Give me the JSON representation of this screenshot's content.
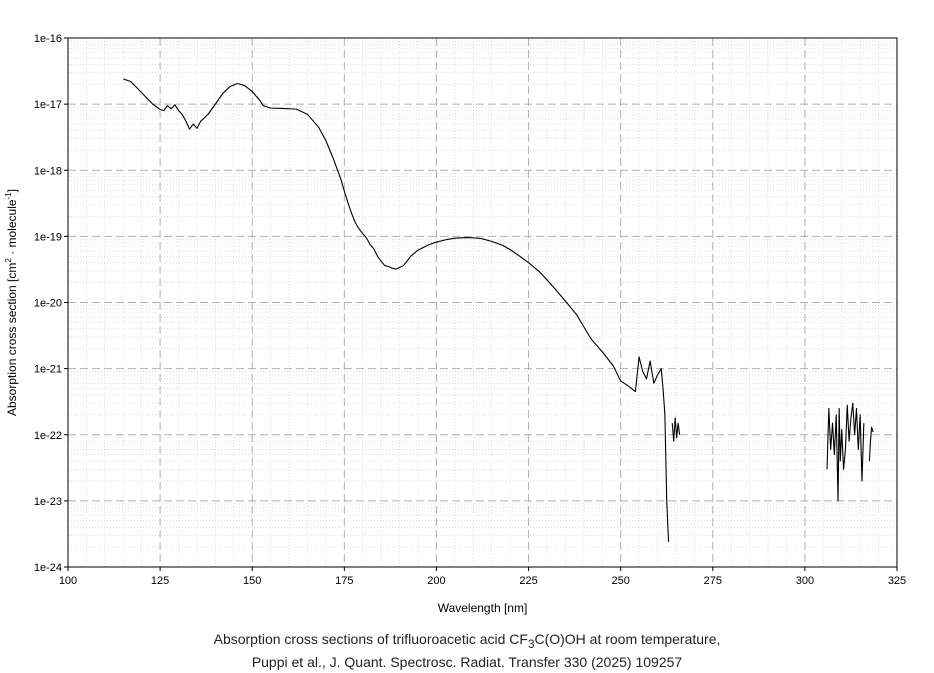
{
  "chart_data": {
    "type": "line",
    "title": "",
    "xlabel": "Wavelength [nm]",
    "ylabel_parts": [
      "Absorption cross section [cm",
      "2",
      " · molecule",
      "-1",
      "]"
    ],
    "xlim": [
      100,
      325
    ],
    "ylim_log10": [
      -24,
      -16
    ],
    "log_y": true,
    "grid": true,
    "line_color": "#000000",
    "x_ticks": [
      "100",
      "125",
      "150",
      "175",
      "200",
      "225",
      "250",
      "275",
      "300",
      "325"
    ],
    "y_ticks": [
      "1e-24",
      "1e-23",
      "1e-22",
      "1e-21",
      "1e-20",
      "1e-19",
      "1e-18",
      "1e-17",
      "1e-16"
    ],
    "series": [
      {
        "segment": "main",
        "x": [
          115,
          117,
          119,
          121,
          123,
          125,
          126,
          127,
          128,
          129,
          130,
          131,
          132,
          133,
          134,
          135,
          136,
          138,
          140,
          142,
          144,
          146,
          148,
          150,
          152,
          153,
          155,
          158,
          162,
          165,
          168,
          170,
          172,
          174,
          175,
          176,
          177,
          178,
          179,
          180,
          181,
          182,
          183,
          184,
          185,
          186,
          187,
          188,
          189,
          190,
          191,
          192,
          193,
          195,
          198,
          200,
          203,
          205,
          208,
          210,
          212,
          215,
          218,
          220,
          222,
          225,
          228,
          230,
          232,
          235,
          238,
          240,
          242,
          245,
          248,
          250,
          252,
          254,
          255,
          256,
          257,
          258,
          259,
          260,
          261,
          261.5,
          262,
          262.5,
          263
        ],
        "y": [
          2.4e-17,
          2.2e-17,
          1.7e-17,
          1.3e-17,
          1e-17,
          8.3e-18,
          8e-18,
          9.5e-18,
          8.5e-18,
          9.8e-18,
          8e-18,
          7e-18,
          5.5e-18,
          4.2e-18,
          5e-18,
          4.3e-18,
          5.5e-18,
          7e-18,
          1e-17,
          1.45e-17,
          1.85e-17,
          2.05e-17,
          1.9e-17,
          1.55e-17,
          1.15e-17,
          9.5e-18,
          8.7e-18,
          8.6e-18,
          8.4e-18,
          7e-18,
          4.5e-18,
          2.8e-18,
          1.5e-18,
          7.5e-19,
          4.8e-19,
          3.2e-19,
          2.2e-19,
          1.6e-19,
          1.3e-19,
          1.1e-19,
          9.5e-20,
          7.5e-20,
          6.5e-20,
          5e-20,
          4.2e-20,
          3.6e-20,
          3.5e-20,
          3.3e-20,
          3.2e-20,
          3.4e-20,
          3.6e-20,
          4.2e-20,
          5e-20,
          6.2e-20,
          7.5e-20,
          8.2e-20,
          9e-20,
          9.4e-20,
          9.6e-20,
          9.5e-20,
          9.3e-20,
          8.4e-20,
          7.3e-20,
          6.3e-20,
          5.3e-20,
          4e-20,
          2.9e-20,
          2.2e-20,
          1.65e-20,
          1.05e-20,
          6.6e-21,
          4.3e-21,
          2.8e-21,
          1.8e-21,
          1.1e-21,
          6.5e-22,
          5.5e-22,
          4.5e-22,
          1.5e-21,
          9e-22,
          7e-22,
          1.3e-21,
          6e-22,
          8e-22,
          1e-21,
          5e-22,
          2e-22,
          1e-23,
          2.4e-24
        ]
      },
      {
        "segment": "fragment-265",
        "x": [
          264,
          264.4,
          264.8,
          265.2,
          265.6,
          266
        ],
        "y": [
          1.5e-22,
          8e-23,
          1.8e-22,
          9e-23,
          1.5e-22,
          1e-22
        ]
      },
      {
        "segment": "noise-310",
        "x": [
          306,
          306.5,
          307,
          307.5,
          308,
          308.5,
          309,
          309.3,
          309.6,
          310,
          310.5,
          311,
          311.5,
          312,
          312.5,
          313,
          313.5,
          314,
          314.5,
          315,
          315.5,
          316
        ],
        "y": [
          3e-23,
          2.5e-22,
          6e-23,
          1.5e-22,
          5e-23,
          2e-22,
          1e-23,
          2.5e-22,
          4e-23,
          1.2e-22,
          3e-23,
          6e-23,
          2.8e-22,
          8e-23,
          1.8e-22,
          3e-22,
          1e-22,
          2.5e-22,
          6e-23,
          2e-22,
          2e-23,
          1.5e-22
        ]
      },
      {
        "segment": "tail-318",
        "x": [
          317.5,
          317.8,
          318.1,
          318.5
        ],
        "y": [
          4e-23,
          8e-23,
          1.3e-22,
          1.1e-22
        ]
      }
    ]
  },
  "caption": {
    "line1_prefix": "Absorption cross sections of trifluoroacetic acid CF",
    "line1_sub": "3",
    "line1_suffix": "C(O)OH at room temperature,",
    "line2": "Puppi et al., J. Quant. Spectrosc. Radiat. Transfer 330 (2025) 109257"
  }
}
